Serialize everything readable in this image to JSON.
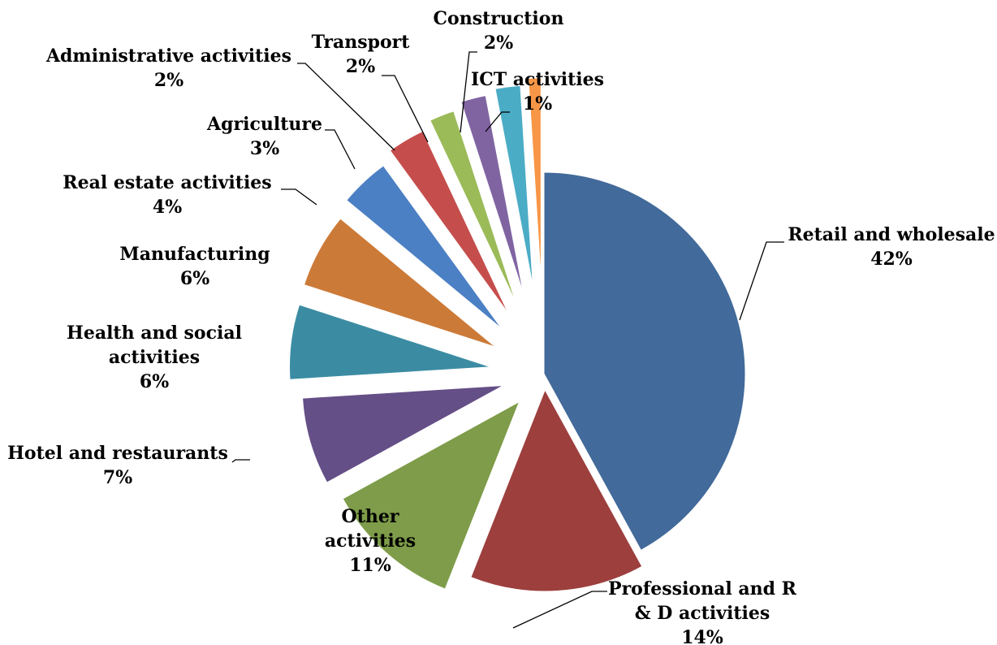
{
  "chart_data": {
    "type": "pie",
    "title": "",
    "legend": "none",
    "data_labels": "category name and percentage",
    "exploded": true,
    "start": "12 o'clock, clockwise",
    "slices": [
      {
        "name": "Retail and wholesale",
        "value": 42,
        "label": "42%",
        "color": "#426A9A"
      },
      {
        "name": "Professional and R & D activities",
        "value": 14,
        "label": "14%",
        "color": "#9C3F3D"
      },
      {
        "name": "Other activities",
        "value": 11,
        "label": "11%",
        "color": "#7E9C49"
      },
      {
        "name": "Hotel and restaurants",
        "value": 7,
        "label": "7%",
        "color": "#654F87"
      },
      {
        "name": "Health and social activities",
        "value": 6,
        "label": "6%",
        "color": "#3B8CA3"
      },
      {
        "name": "Manufacturing",
        "value": 6,
        "label": "6%",
        "color": "#CC7A38"
      },
      {
        "name": "Real estate activities",
        "value": 4,
        "label": "4%",
        "color": "#4C80C4"
      },
      {
        "name": "Agriculture",
        "value": 3,
        "label": "3%",
        "color": "#C54E4C"
      },
      {
        "name": "Administrative activities",
        "value": 2,
        "label": "2%",
        "color": "#9BBB59"
      },
      {
        "name": "Transport",
        "value": 2,
        "label": "2%",
        "color": "#8064A2"
      },
      {
        "name": "Construction",
        "value": 2,
        "label": "2%",
        "color": "#4BACC6"
      },
      {
        "name": "ICT activities",
        "value": 1,
        "label": "1%",
        "color": "#F79646"
      }
    ]
  }
}
